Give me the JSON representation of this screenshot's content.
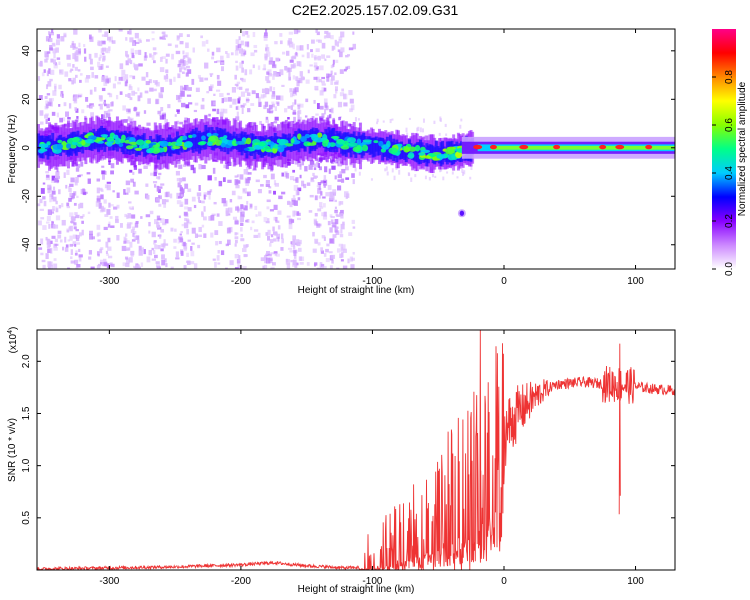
{
  "figure_title": "C2E2.2025.157.02.09.G31",
  "chart_data": [
    {
      "type": "heatmap",
      "xlabel": "Height of straight line (km)",
      "ylabel": "Frequency (Hz)",
      "xlim": [
        -355,
        130
      ],
      "ylim": [
        -50,
        49
      ],
      "xticks": [
        -300,
        -200,
        -100,
        0,
        100
      ],
      "yticks": [
        -40,
        -20,
        0,
        20,
        40
      ],
      "colorbar": {
        "label": "Normalized spectral amplitude",
        "range": [
          0,
          1
        ],
        "ticks": [
          "0.0",
          "0.2",
          "0.4",
          "0.6",
          "0.8"
        ],
        "colors": [
          "#ffffff",
          "#cc88ff",
          "#8800ff",
          "#0000ff",
          "#00ccff",
          "#00ff88",
          "#88ff00",
          "#ffff00",
          "#ff8800",
          "#ff0000",
          "#ff0088"
        ]
      },
      "scatter_region_x": [
        -355,
        -115
      ],
      "band_center_hz": 0,
      "band_halfwidth_hz": 5,
      "isolated_feature": {
        "x": -32,
        "y": -27
      },
      "grid": false
    },
    {
      "type": "line",
      "xlabel": "Height of straight line (km)",
      "ylabel": "SNR (10 * v/v)",
      "y_multiplier_label": "(x10^4)",
      "xlim": [
        -355,
        130
      ],
      "ylim": [
        0,
        2.3
      ],
      "xticks": [
        -300,
        -200,
        -100,
        0,
        100
      ],
      "yticks": [
        0.5,
        1.0,
        1.5,
        2.0
      ],
      "ytick_labels": [
        "0.5",
        "1.0",
        "1.5",
        "2.0"
      ],
      "color": "#ee3333",
      "grid": false,
      "series": [
        {
          "x": [
            -355,
            -300,
            -250,
            -200,
            -175,
            -150,
            -120,
            -100,
            -90,
            -80,
            -70,
            -60,
            -50,
            -40,
            -30,
            -20,
            -10,
            0,
            10,
            20,
            30,
            40,
            60,
            80,
            90,
            100,
            110,
            120,
            130
          ],
          "y": [
            0.01,
            0.02,
            0.03,
            0.05,
            0.07,
            0.04,
            0.02,
            0.03,
            0.08,
            0.15,
            0.25,
            0.35,
            0.45,
            0.6,
            0.75,
            0.9,
            1.1,
            1.3,
            1.5,
            1.62,
            1.72,
            1.78,
            1.8,
            1.78,
            1.78,
            1.76,
            1.74,
            1.73,
            1.72
          ]
        }
      ],
      "spikes": [
        {
          "x": -18,
          "y": 2.3
        },
        {
          "x": -12,
          "y": 1.8
        },
        {
          "x": 88,
          "y": 2.17
        }
      ]
    }
  ]
}
